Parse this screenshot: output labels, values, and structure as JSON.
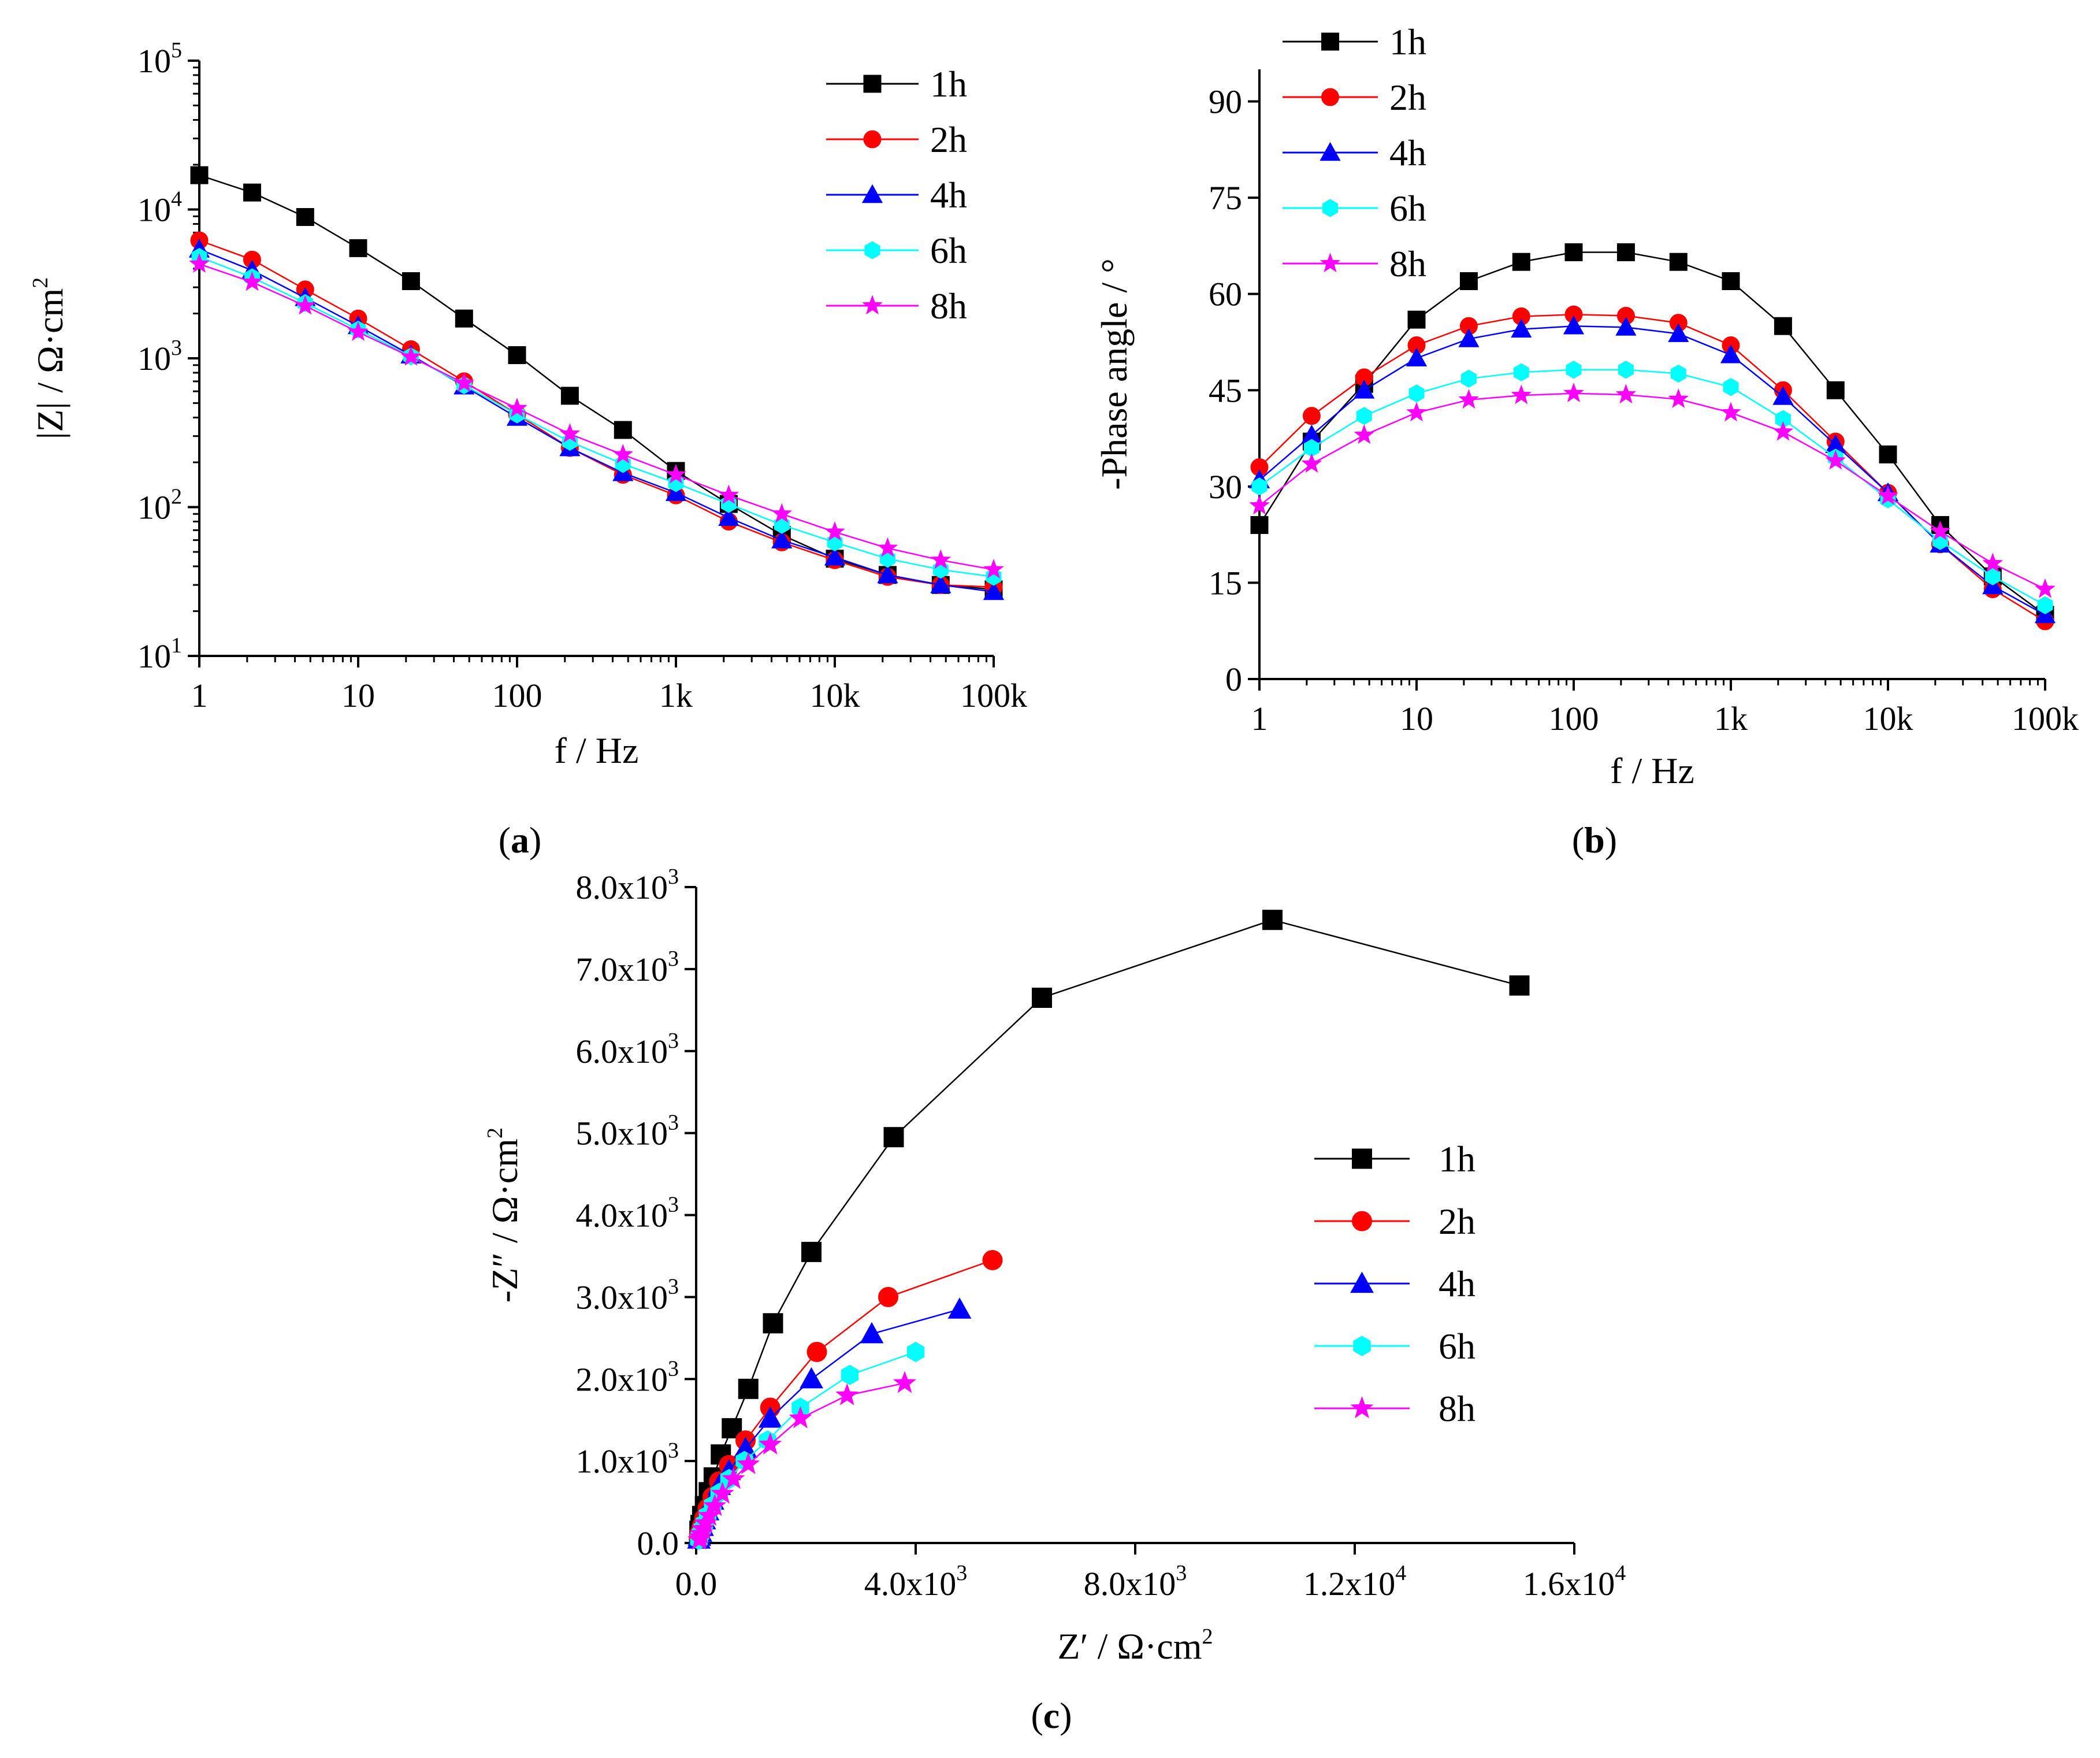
{
  "chart_data": [
    {
      "type": "line",
      "panel": "(a)",
      "panel_letter": "a",
      "xlabel": "f / Hz",
      "ylabel": "|Z| / Ω·cm",
      "ylabel_sup": "2",
      "xscale": "log",
      "yscale": "log",
      "xlim": [
        1,
        100000
      ],
      "ylim": [
        10,
        100000
      ],
      "x_ticks": [
        1,
        10,
        100,
        1000,
        10000,
        100000
      ],
      "x_tick_labels": [
        "1",
        "10",
        "100",
        "1k",
        "10k",
        "100k"
      ],
      "y_ticks": [
        10,
        100,
        1000,
        10000,
        100000
      ],
      "y_tick_labels": [
        {
          "base": "10",
          "exp": "1"
        },
        {
          "base": "10",
          "exp": "2"
        },
        {
          "base": "10",
          "exp": "3"
        },
        {
          "base": "10",
          "exp": "4"
        },
        {
          "base": "10",
          "exp": "5"
        }
      ],
      "legend_position": "top-right",
      "x": [
        1,
        2.15,
        4.64,
        10,
        21.5,
        46.4,
        100,
        215,
        464,
        1000,
        2150,
        4640,
        10000,
        21500,
        46400,
        100000
      ],
      "series": [
        {
          "name": "1h",
          "color": "#000000",
          "marker": "square",
          "values": [
            17000,
            13000,
            8900,
            5500,
            3300,
            1850,
            1050,
            560,
            330,
            175,
            105,
            65,
            45,
            35,
            30,
            28
          ]
        },
        {
          "name": "2h",
          "color": "#ff0000",
          "marker": "circle",
          "values": [
            6200,
            4600,
            2900,
            1850,
            1150,
            700,
            420,
            250,
            165,
            120,
            80,
            58,
            44,
            34,
            30,
            29
          ]
        },
        {
          "name": "4h",
          "color": "#0000ff",
          "marker": "triangle",
          "values": [
            5400,
            3900,
            2550,
            1650,
            1050,
            650,
            400,
            250,
            170,
            125,
            85,
            60,
            46,
            35,
            30,
            27
          ]
        },
        {
          "name": "6h",
          "color": "#00ffff",
          "marker": "hexagon",
          "values": [
            4800,
            3500,
            2350,
            1560,
            1030,
            660,
            420,
            275,
            195,
            145,
            105,
            76,
            58,
            45,
            38,
            34
          ]
        },
        {
          "name": "8h",
          "color": "#ff00ff",
          "marker": "star",
          "values": [
            4300,
            3250,
            2250,
            1500,
            1020,
            680,
            460,
            310,
            225,
            165,
            120,
            90,
            68,
            53,
            44,
            38
          ]
        }
      ]
    },
    {
      "type": "line",
      "panel": "(b)",
      "panel_letter": "b",
      "xlabel": "f / Hz",
      "ylabel": "-Phase angle / °",
      "xscale": "log",
      "xlim": [
        1,
        100000
      ],
      "ylim": [
        0,
        95
      ],
      "x_ticks": [
        1,
        10,
        100,
        1000,
        10000,
        100000
      ],
      "x_tick_labels": [
        "1",
        "10",
        "100",
        "1k",
        "10k",
        "100k"
      ],
      "y_ticks": [
        0,
        15,
        30,
        45,
        60,
        75,
        90
      ],
      "y_tick_labels": [
        "0",
        "15",
        "30",
        "45",
        "60",
        "75",
        "90"
      ],
      "legend_position": "top-left",
      "x": [
        1,
        2.15,
        4.64,
        10,
        21.5,
        46.4,
        100,
        215,
        464,
        1000,
        2150,
        4640,
        10000,
        21500,
        46400,
        100000
      ],
      "series": [
        {
          "name": "1h",
          "color": "#000000",
          "marker": "square",
          "values": [
            24,
            37,
            46,
            56,
            62,
            65,
            66.5,
            66.5,
            65,
            62,
            55,
            45,
            35,
            24,
            16,
            10
          ]
        },
        {
          "name": "2h",
          "color": "#ff0000",
          "marker": "circle",
          "values": [
            33,
            41,
            47,
            52,
            55,
            56.5,
            56.8,
            56.6,
            55.5,
            52,
            45,
            37,
            29,
            21,
            14,
            9
          ]
        },
        {
          "name": "4h",
          "color": "#0000ff",
          "marker": "triangle",
          "values": [
            31,
            38,
            45,
            50,
            53,
            54.5,
            55,
            54.8,
            53.8,
            50.5,
            44,
            36.5,
            29,
            21,
            14.5,
            10
          ]
        },
        {
          "name": "6h",
          "color": "#00ffff",
          "marker": "hexagon",
          "values": [
            30,
            36,
            41,
            44.5,
            46.8,
            47.8,
            48.2,
            48.2,
            47.6,
            45.5,
            40.5,
            34.5,
            28,
            21.5,
            16,
            11.5
          ]
        },
        {
          "name": "8h",
          "color": "#ff00ff",
          "marker": "star",
          "values": [
            27,
            33.5,
            38,
            41.5,
            43.5,
            44.2,
            44.5,
            44.3,
            43.6,
            41.5,
            38.5,
            34,
            28.5,
            23,
            18,
            14
          ]
        }
      ]
    },
    {
      "type": "scatter",
      "panel": "(c)",
      "panel_letter": "c",
      "xlabel": "Z′ / Ω·cm",
      "xlabel_sup": "2",
      "ylabel": "-Z″ / Ω·cm",
      "ylabel_sup": "2",
      "xlim": [
        0,
        16000
      ],
      "ylim": [
        0,
        8000
      ],
      "x_ticks": [
        0,
        4000,
        8000,
        12000,
        16000
      ],
      "x_tick_labels": [
        {
          "mant": "0.0",
          "exp": ""
        },
        {
          "mant": "4.0x10",
          "exp": "3"
        },
        {
          "mant": "8.0x10",
          "exp": "3"
        },
        {
          "mant": "1.2x10",
          "exp": "4"
        },
        {
          "mant": "1.6x10",
          "exp": "4"
        }
      ],
      "y_ticks": [
        0,
        1000,
        2000,
        3000,
        4000,
        5000,
        6000,
        7000,
        8000
      ],
      "y_tick_labels": [
        {
          "mant": "0.0",
          "exp": ""
        },
        {
          "mant": "1.0x10",
          "exp": "3"
        },
        {
          "mant": "2.0x10",
          "exp": "3"
        },
        {
          "mant": "3.0x10",
          "exp": "3"
        },
        {
          "mant": "4.0x10",
          "exp": "3"
        },
        {
          "mant": "5.0x10",
          "exp": "3"
        },
        {
          "mant": "6.0x10",
          "exp": "3"
        },
        {
          "mant": "7.0x10",
          "exp": "3"
        },
        {
          "mant": "8.0x10",
          "exp": "3"
        }
      ],
      "legend_position": "middle-right",
      "series": [
        {
          "name": "1h",
          "color": "#000000",
          "marker": "square",
          "x": [
            15000,
            10500,
            6300,
            3600,
            2100,
            1400,
            950,
            650,
            450,
            320,
            230,
            160,
            110,
            80,
            60
          ],
          "y": [
            6800,
            7600,
            6650,
            4950,
            3550,
            2680,
            1880,
            1400,
            1080,
            800,
            620,
            450,
            330,
            220,
            150
          ]
        },
        {
          "name": "2h",
          "color": "#ff0000",
          "marker": "circle",
          "x": [
            5400,
            3500,
            2200,
            1350,
            900,
            600,
            420,
            300,
            210,
            150,
            110,
            80,
            60,
            50
          ],
          "y": [
            3450,
            3000,
            2330,
            1650,
            1250,
            950,
            750,
            560,
            420,
            300,
            210,
            140,
            90,
            50
          ]
        },
        {
          "name": "4h",
          "color": "#0000ff",
          "marker": "triangle",
          "x": [
            4800,
            3200,
            2100,
            1350,
            900,
            600,
            420,
            300,
            210,
            150,
            110,
            80,
            60,
            50
          ],
          "y": [
            2850,
            2550,
            2000,
            1520,
            1150,
            880,
            700,
            520,
            390,
            280,
            200,
            130,
            80,
            45
          ]
        },
        {
          "name": "6h",
          "color": "#00ffff",
          "marker": "hexagon",
          "x": [
            4000,
            2800,
            1900,
            1300,
            880,
            600,
            420,
            300,
            210,
            150,
            110,
            80,
            60,
            50
          ],
          "y": [
            2330,
            2050,
            1650,
            1250,
            1000,
            780,
            610,
            460,
            340,
            240,
            170,
            110,
            70,
            40
          ]
        },
        {
          "name": "8h",
          "color": "#ff00ff",
          "marker": "star",
          "x": [
            3800,
            2750,
            1900,
            1350,
            950,
            680,
            480,
            340,
            240,
            170,
            120,
            90,
            70,
            55
          ],
          "y": [
            1950,
            1800,
            1520,
            1200,
            960,
            780,
            600,
            450,
            330,
            240,
            170,
            110,
            70,
            40
          ]
        }
      ]
    }
  ]
}
